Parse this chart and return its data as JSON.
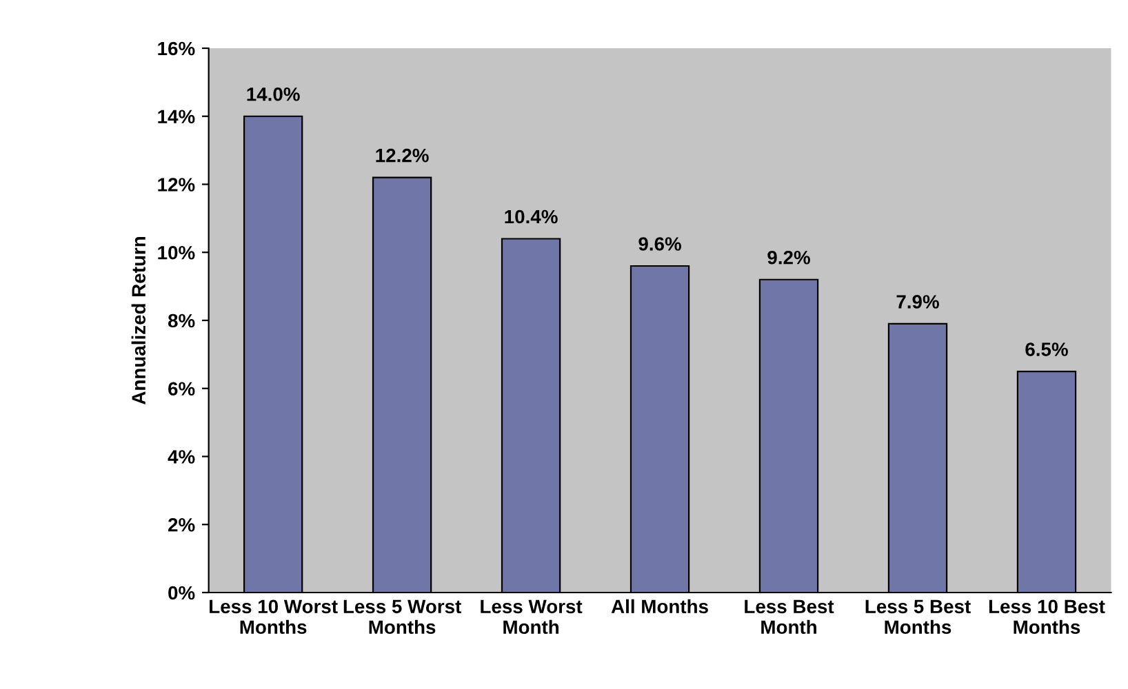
{
  "chart_data": {
    "type": "bar",
    "ylabel": "Annualized Return",
    "categories": [
      "Less 10 Worst\nMonths",
      "Less 5 Worst\nMonths",
      "Less Worst\nMonth",
      "All Months",
      "Less Best\nMonth",
      "Less 5 Best\nMonths",
      "Less 10 Best\nMonths"
    ],
    "values": [
      14.0,
      12.2,
      10.4,
      9.6,
      9.2,
      7.9,
      6.5
    ],
    "value_labels": [
      "14.0%",
      "12.2%",
      "10.4%",
      "9.6%",
      "9.2%",
      "7.9%",
      "6.5%"
    ],
    "color": "#7076a8",
    "ylim": [
      0,
      16
    ],
    "yticks": [
      {
        "value": 0,
        "label": "0%"
      },
      {
        "value": 2,
        "label": "2%"
      },
      {
        "value": 4,
        "label": "4%"
      },
      {
        "value": 6,
        "label": "6%"
      },
      {
        "value": 8,
        "label": "8%"
      },
      {
        "value": 10,
        "label": "10%"
      },
      {
        "value": 12,
        "label": "12%"
      },
      {
        "value": 14,
        "label": "14%"
      },
      {
        "value": 16,
        "label": "16%"
      }
    ],
    "grid": false
  }
}
